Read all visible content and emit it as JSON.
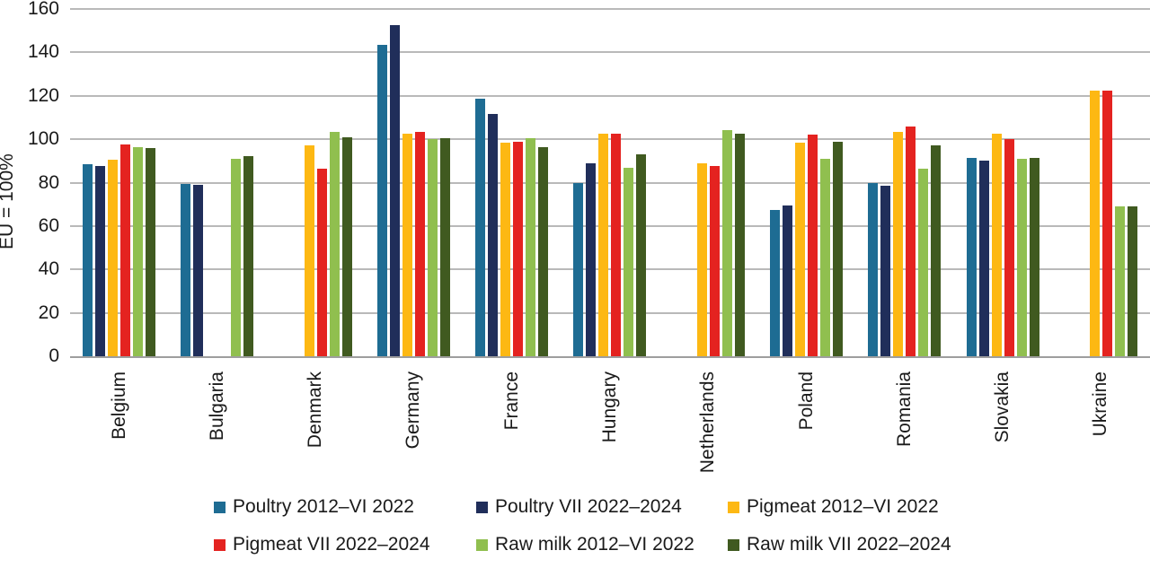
{
  "chart_data": {
    "type": "bar",
    "title": "",
    "ylabel": "EU = 100%",
    "ylim": [
      0,
      160
    ],
    "ytick_step": 20,
    "grid": "horizontal",
    "legend_position": "bottom",
    "categories": [
      "Belgium",
      "Bulgaria",
      "Denmark",
      "Germany",
      "France",
      "Hungary",
      "Netherlands",
      "Poland",
      "Romania",
      "Slovakia",
      "Ukraine"
    ],
    "series": [
      {
        "name": "Poultry 2012–VI 2022",
        "color": "#1e6c93",
        "values": [
          88.5,
          79.5,
          null,
          143.5,
          118.5,
          80,
          null,
          67.5,
          80,
          91.5,
          null
        ]
      },
      {
        "name": "Poultry VII 2022–2024",
        "color": "#202e5a",
        "values": [
          87.5,
          79,
          null,
          152.5,
          111.5,
          89,
          null,
          69.5,
          78.5,
          90,
          null
        ]
      },
      {
        "name": "Pigmeat 2012–VI 2022",
        "color": "#fdb813",
        "values": [
          90.5,
          null,
          97,
          102.5,
          98.5,
          102.5,
          89,
          98.5,
          103.5,
          102.5,
          122.5
        ]
      },
      {
        "name": "Pigmeat VII 2022–2024",
        "color": "#e42320",
        "values": [
          97.5,
          null,
          86.5,
          103.5,
          99,
          102.5,
          87.5,
          102,
          106,
          100,
          122.5
        ]
      },
      {
        "name": "Raw milk 2012–VI 2022",
        "color": "#90bf4f",
        "values": [
          96.5,
          91,
          103.5,
          100,
          100.5,
          87,
          104,
          91,
          86.5,
          91,
          69
        ]
      },
      {
        "name": "Raw milk VII 2022–2024",
        "color": "#405a20",
        "values": [
          96,
          92,
          101,
          100.5,
          96.5,
          93,
          102.5,
          99,
          97,
          91.5,
          69
        ]
      }
    ]
  },
  "colors": {
    "gridline": "#b9b9b9",
    "axis_line": "#9e9e9e",
    "text": "#1a1a1a"
  }
}
